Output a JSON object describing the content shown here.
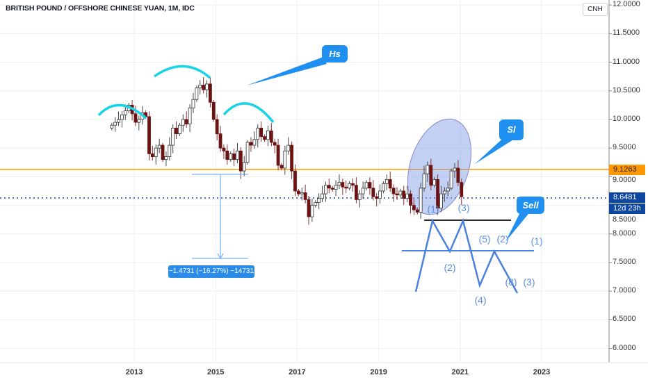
{
  "header": {
    "title": "BRITISH POUND / OFFSHORE CHINESE YUAN, 1M, IDC",
    "currency_button": "CNH"
  },
  "price_axis": {
    "labels": [
      "12.0000",
      "11.5000",
      "11.0000",
      "10.5000",
      "10.0000",
      "9.5000",
      "9.0000",
      "8.5000",
      "8.0000",
      "7.5000",
      "7.0000",
      "6.5000",
      "6.0000"
    ],
    "hline_price": "9.1263",
    "last_price": "8.6481",
    "countdown": "12d 23h"
  },
  "time_axis": {
    "labels": [
      "2013",
      "2015",
      "2017",
      "2019",
      "2021",
      "2023"
    ]
  },
  "annotations": {
    "hs_label": "Hs",
    "sl_label": "Sl",
    "sell_label": "Sell",
    "measure": "−1.4731 (−16.27%) −14731",
    "waves": [
      "(1)",
      "(3)",
      "(2)",
      "(4)",
      "(5)",
      "(2)",
      "(1)",
      "(8)",
      "(3)"
    ]
  },
  "colors": {
    "up": "#ffffff",
    "down": "#6b1212",
    "hline": "#ff9800",
    "last": "#0d47a1",
    "callout": "#1f8ff0",
    "arc": "#19d3e6"
  },
  "chart_data": {
    "type": "candlestick",
    "title": "BRITISH POUND / OFFSHORE CHINESE YUAN, 1M, IDC",
    "interval": "1M",
    "start": 2012.45,
    "closes": [
      9.9,
      9.95,
      10.0,
      10.08,
      10.15,
      10.25,
      10.1,
      9.95,
      10.0,
      10.12,
      10.05,
      9.4,
      9.35,
      9.5,
      9.55,
      9.3,
      9.35,
      9.55,
      9.85,
      9.75,
      9.9,
      10.0,
      9.92,
      10.2,
      10.35,
      10.55,
      10.6,
      10.52,
      10.62,
      10.3,
      10.0,
      9.75,
      9.5,
      9.45,
      9.3,
      9.4,
      9.3,
      9.45,
      9.1,
      9.25,
      9.6,
      9.55,
      9.65,
      9.85,
      9.7,
      9.65,
      9.8,
      9.6,
      9.55,
      9.2,
      9.15,
      9.45,
      9.55,
      9.1,
      8.75,
      8.7,
      8.72,
      8.6,
      8.3,
      8.5,
      8.55,
      8.62,
      8.7,
      8.85,
      8.8,
      8.78,
      8.85,
      8.9,
      8.82,
      8.8,
      8.88,
      8.85,
      8.6,
      8.7,
      8.8,
      8.9,
      8.8,
      8.65,
      8.62,
      8.75,
      8.88,
      8.95,
      8.8,
      8.7,
      8.68,
      8.75,
      8.62,
      8.7,
      8.5,
      8.42,
      8.38,
      8.8,
      9.05,
      9.2,
      8.85,
      8.95,
      8.45,
      8.7,
      8.75,
      8.8,
      9.1,
      9.15,
      8.9,
      8.65
    ],
    "ylim": [
      5.8,
      12.1
    ],
    "xlim": [
      2011.8,
      2024.2
    ],
    "yticks": [
      6,
      6.5,
      7,
      7.5,
      8,
      8.5,
      9,
      9.5,
      10,
      10.5,
      11,
      11.5,
      12
    ]
  }
}
